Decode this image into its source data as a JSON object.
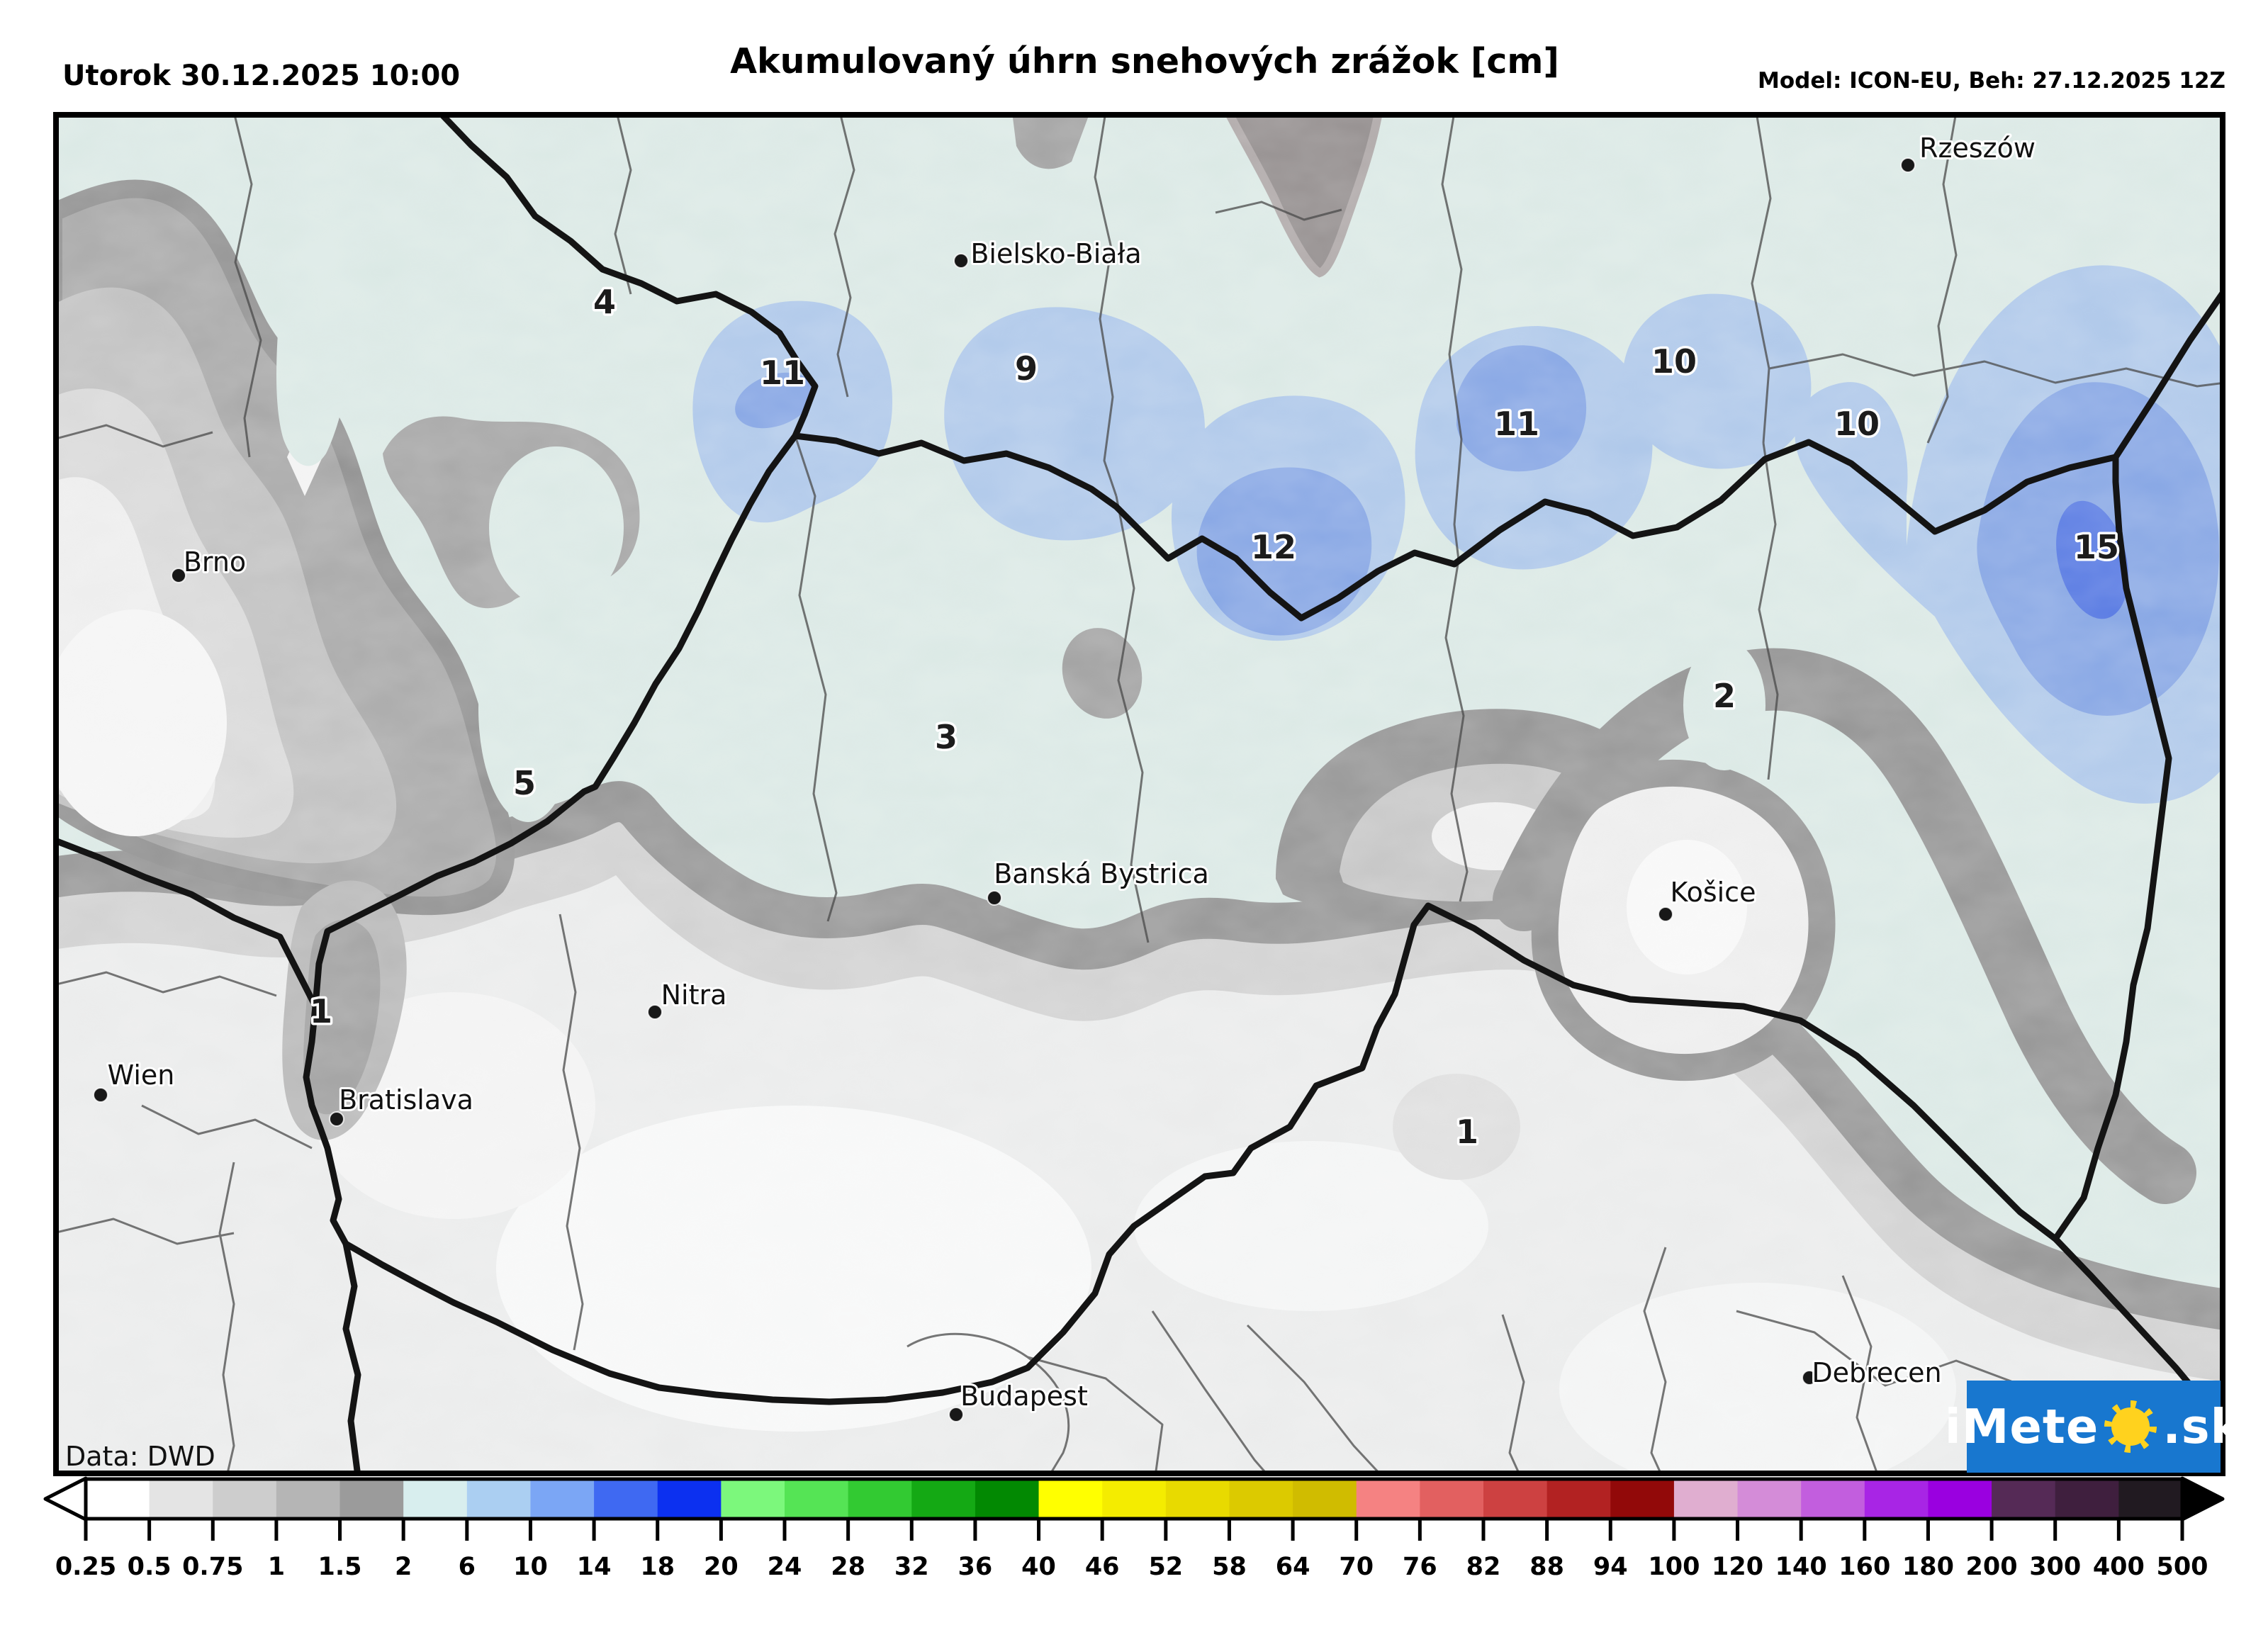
{
  "header": {
    "date_label": "Utorok 30.12.2025 10:00",
    "title": "Akumulovaný úhrn snehových zrážok [cm]",
    "model_label": "Model: ICON-EU, Beh: 27.12.2025 12Z"
  },
  "map": {
    "source_label": "Data: DWD",
    "cities": [
      {
        "name": "Rzeszów"
      },
      {
        "name": "Bielsko-Biała"
      },
      {
        "name": "Brno"
      },
      {
        "name": "Wien"
      },
      {
        "name": "Bratislava"
      },
      {
        "name": "Nitra"
      },
      {
        "name": "Banská Bystrica"
      },
      {
        "name": "Košice"
      },
      {
        "name": "Budapest"
      },
      {
        "name": "Debrecen"
      }
    ],
    "value_labels": [
      "4",
      "11",
      "9",
      "10",
      "11",
      "10",
      "12",
      "15",
      "3",
      "5",
      "2",
      "1",
      "1"
    ]
  },
  "legend": {
    "tick_labels": [
      "0.25",
      "0.5",
      "0.75",
      "1",
      "1.5",
      "2",
      "6",
      "10",
      "14",
      "18",
      "20",
      "24",
      "28",
      "32",
      "36",
      "40",
      "46",
      "52",
      "58",
      "64",
      "70",
      "76",
      "82",
      "88",
      "94",
      "100",
      "120",
      "140",
      "160",
      "180",
      "200",
      "300",
      "400",
      "500"
    ],
    "segment_colors": [
      "#ffffff",
      "#e4e4e4",
      "#cdcdcd",
      "#b5b5b5",
      "#9b9b9b",
      "#d8eeee",
      "#abcff2",
      "#7ba6f5",
      "#3f69f2",
      "#0c30f0",
      "#7cf87c",
      "#55e455",
      "#32ca32",
      "#14a914",
      "#028902",
      "#ffff00",
      "#f4ec00",
      "#e8da00",
      "#dcca00",
      "#d0bc00",
      "#f58282",
      "#e26060",
      "#cd4141",
      "#b22222",
      "#920909",
      "#e0aed0",
      "#d48cd8",
      "#c25ede",
      "#a825e5",
      "#9a00e0",
      "#552a56",
      "#3f1f3e",
      "#211a21"
    ],
    "arrow_left_fill": "#ffffff",
    "arrow_right_fill": "#000000"
  },
  "logo": {
    "text_left": "iMete",
    "text_right": ".sk",
    "background": "#1877cf",
    "sun_color": "#ffd21e"
  },
  "palette": {
    "snow_2_6": "#d8e7e3",
    "snow_6_10": "#a9c4e8",
    "snow_10_14": "#7d9fe2",
    "snow_14_18": "#4a6fe0",
    "mountain_band": "#8e8e8e",
    "lowland": "#e9eaea",
    "country_border": "#141414",
    "region_border": "#4a4a4a"
  }
}
